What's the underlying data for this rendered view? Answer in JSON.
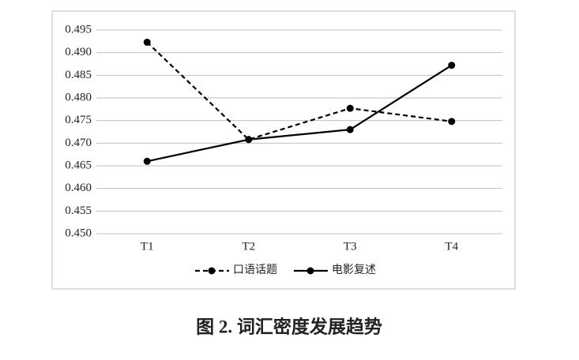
{
  "chart_data": {
    "type": "line",
    "title": "图 2. 词汇密度发展趋势",
    "categories": [
      "T1",
      "T2",
      "T3",
      "T4"
    ],
    "series": [
      {
        "name": "口语话题",
        "color": "#000000",
        "line_style": "dashed",
        "values": [
          0.4923,
          0.4708,
          0.4777,
          0.4748
        ]
      },
      {
        "name": "电影复述",
        "color": "#000000",
        "line_style": "solid",
        "values": [
          0.466,
          0.4708,
          0.473,
          0.4872
        ]
      }
    ],
    "ylim": [
      0.45,
      0.495
    ],
    "yticks": [
      {
        "value": 0.45,
        "label": "0.450"
      },
      0.455,
      {
        "value": 0.46,
        "label": "0.460"
      },
      0.465,
      {
        "value": 0.47,
        "label": "0.470"
      },
      0.475,
      {
        "value": 0.48,
        "label": "0.480"
      },
      0.485,
      {
        "value": 0.49,
        "label": "0.490"
      },
      0.495
    ],
    "grid": true,
    "legend": "bottom"
  }
}
